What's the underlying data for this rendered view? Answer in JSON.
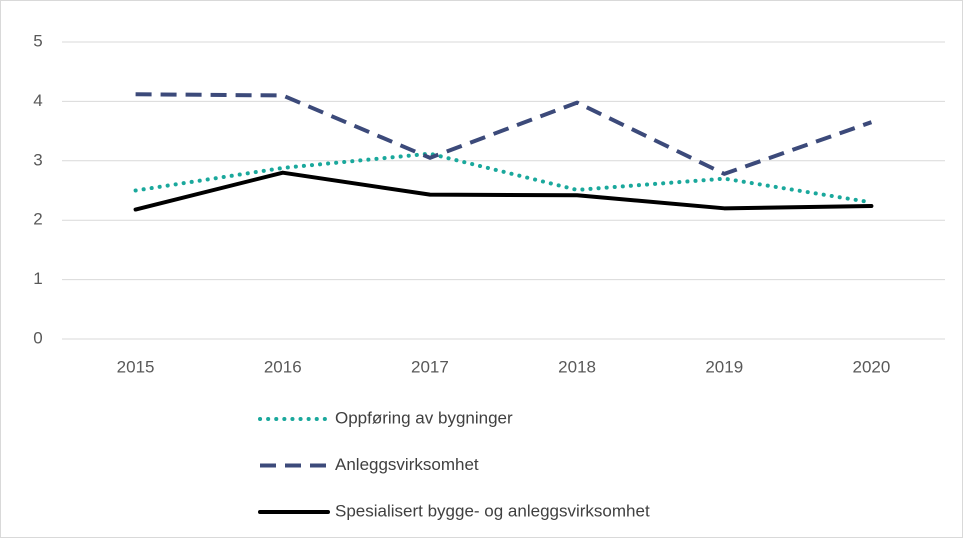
{
  "chart_data": {
    "type": "line",
    "categories": [
      "2015",
      "2016",
      "2017",
      "2018",
      "2019",
      "2020"
    ],
    "series": [
      {
        "name": "Oppføring av bygninger",
        "color": "#1aa89c",
        "style": "dotted",
        "values": [
          2.5,
          2.88,
          3.12,
          2.51,
          2.7,
          2.3
        ]
      },
      {
        "name": "Anleggsvirksomhet",
        "color": "#3c4a7a",
        "style": "dashed",
        "values": [
          4.12,
          4.1,
          3.05,
          3.98,
          2.78,
          3.65
        ]
      },
      {
        "name": "Spesialisert bygge- og anleggsvirksomhet",
        "color": "#000000",
        "style": "solid",
        "values": [
          2.18,
          2.8,
          2.43,
          2.42,
          2.2,
          2.24
        ]
      }
    ],
    "ylim": [
      0,
      5
    ],
    "yticks": [
      0,
      1,
      2,
      3,
      4,
      5
    ],
    "grid": true,
    "legend": "bottom"
  }
}
